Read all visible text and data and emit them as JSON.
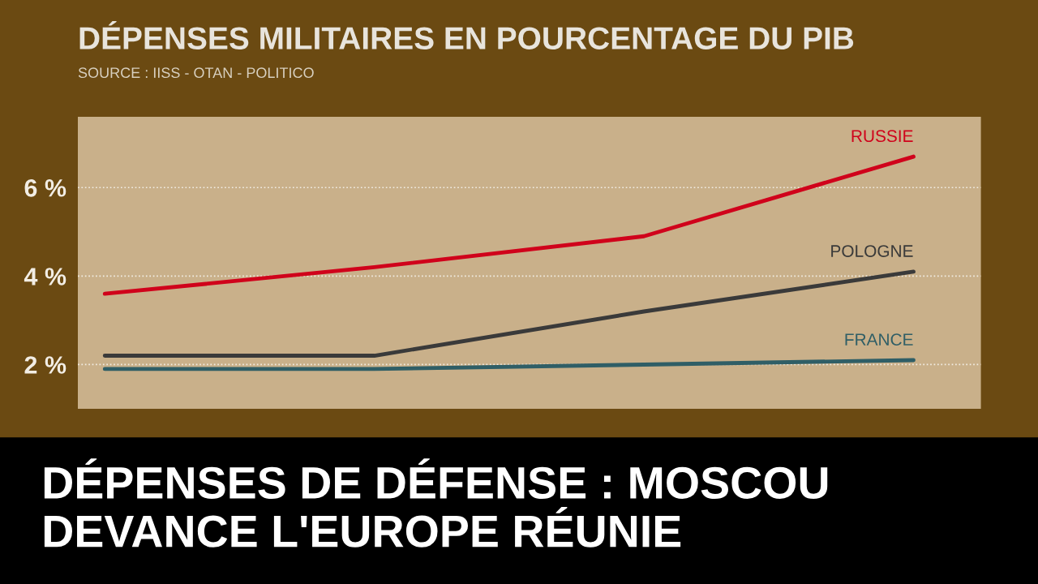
{
  "chart_data": {
    "type": "line",
    "title": "DÉPENSES MILITAIRES EN POURCENTAGE DU PIB",
    "annotations": [
      "SOURCE : IISS - OTAN - POLITICO",
      "DÉPENSES DE DÉFENSE : MOSCOU DEVANCE L'EUROPE RÉUNIE"
    ],
    "categories": [
      null,
      null,
      null,
      null
    ],
    "series": [
      {
        "name": "RUSSIE",
        "color": "#d0021b",
        "values": [
          3.6,
          4.2,
          4.9,
          6.7
        ]
      },
      {
        "name": "POLOGNE",
        "color": "#3a3a3a",
        "values": [
          2.2,
          2.2,
          3.2,
          4.1
        ]
      },
      {
        "name": "FRANCE",
        "color": "#2f5e66",
        "values": [
          1.9,
          1.9,
          2.0,
          2.1
        ]
      }
    ],
    "ylim": [
      1,
      7.6
    ],
    "yticks": [
      {
        "value": 2,
        "label": "2 %"
      },
      {
        "value": 4,
        "label": "4 %"
      },
      {
        "value": 6,
        "label": "6 %"
      }
    ],
    "grid": "y",
    "legend": false,
    "marker": "none",
    "line_style": "solid"
  }
}
